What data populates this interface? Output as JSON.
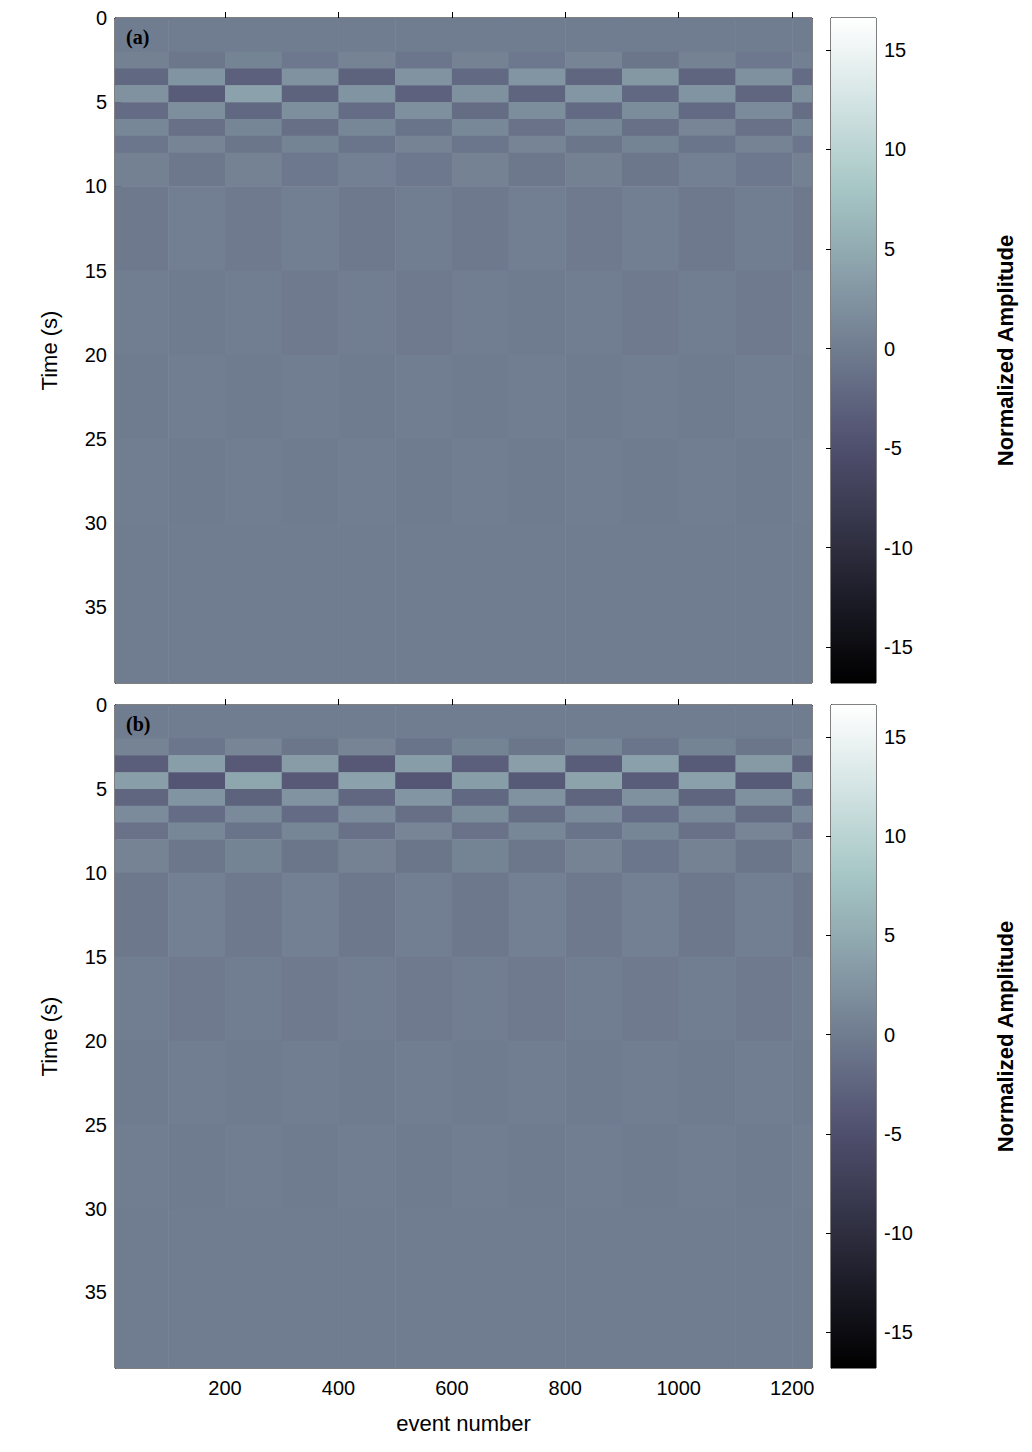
{
  "chart_data": [
    {
      "type": "heatmap",
      "label": "(a)",
      "ylabel": "Time (s)",
      "tick_labels": "y",
      "xlim": [
        6,
        1235
      ],
      "xticks": [
        200,
        400,
        600,
        800,
        1000,
        1200
      ],
      "ylim": [
        0,
        39.5
      ],
      "yticks": [
        0,
        5,
        10,
        15,
        20,
        25,
        30,
        35
      ],
      "x_edges": [
        0,
        100,
        200,
        300,
        400,
        500,
        600,
        700,
        800,
        900,
        1000,
        1100,
        1200,
        1300
      ],
      "y_edges": [
        0,
        2,
        3,
        4,
        5,
        6,
        7,
        8,
        10,
        15,
        20,
        25,
        30,
        40
      ],
      "cells": [
        [
          0,
          0,
          0,
          0,
          0,
          0,
          0,
          0,
          0,
          0,
          0,
          0,
          0
        ],
        [
          0.5,
          -0.6,
          0.8,
          -0.5,
          0.7,
          -0.8,
          0.6,
          -0.5,
          0.9,
          -0.7,
          0.6,
          -0.5,
          0.4
        ],
        [
          -2.2,
          2.6,
          -3.0,
          2.4,
          -2.8,
          2.5,
          -2.1,
          2.7,
          -2.4,
          3.0,
          -2.6,
          2.2,
          -1.8
        ],
        [
          2.4,
          -3.5,
          4.0,
          -2.8,
          2.6,
          -2.9,
          2.3,
          -2.5,
          2.8,
          -2.2,
          2.6,
          -2.4,
          2.0
        ],
        [
          -1.8,
          2.0,
          -2.2,
          1.9,
          -1.7,
          2.1,
          -1.6,
          1.8,
          -2.0,
          1.7,
          -1.9,
          1.6,
          -1.5
        ],
        [
          1.2,
          -1.3,
          1.1,
          -1.4,
          1.2,
          -1.0,
          1.3,
          -1.1,
          1.2,
          -1.3,
          1.0,
          -1.2,
          1.1
        ],
        [
          -0.8,
          0.9,
          -0.7,
          0.8,
          -0.9,
          0.7,
          -0.8,
          0.9,
          -0.7,
          0.8,
          -0.9,
          0.7,
          -0.8
        ],
        [
          0.5,
          -0.4,
          0.6,
          -0.5,
          0.4,
          -0.5,
          0.6,
          -0.4,
          0.5,
          -0.6,
          0.4,
          -0.5,
          0.5
        ],
        [
          -0.3,
          0.3,
          -0.2,
          0.3,
          -0.3,
          0.2,
          -0.3,
          0.3,
          -0.2,
          0.3,
          -0.3,
          0.2,
          -0.3
        ],
        [
          0.2,
          -0.1,
          0.2,
          -0.2,
          0.1,
          -0.2,
          0.2,
          -0.1,
          0.2,
          -0.2,
          0.1,
          -0.2,
          0.2
        ],
        [
          -0.1,
          0.1,
          -0.1,
          0.1,
          -0.1,
          0.1,
          -0.1,
          0.1,
          -0.1,
          0.1,
          -0.1,
          0.1,
          -0.1
        ],
        [
          0.1,
          -0.1,
          0.1,
          -0.1,
          0.1,
          -0.1,
          0.1,
          -0.1,
          0.1,
          -0.1,
          0.1,
          -0.1,
          0.1
        ],
        [
          0,
          0,
          0,
          0,
          0,
          0,
          0,
          0,
          0,
          0,
          0,
          0,
          0
        ]
      ],
      "colorbar": {
        "label": "Normalized Amplitude",
        "range": [
          -16.8,
          16.6
        ],
        "ticks": [
          -15,
          -10,
          -5,
          0,
          5,
          10,
          15
        ]
      }
    },
    {
      "type": "heatmap",
      "label": "(b)",
      "xlabel": "event number",
      "ylabel": "Time (s)",
      "xlim": [
        6,
        1235
      ],
      "xticks": [
        200,
        400,
        600,
        800,
        1000,
        1200
      ],
      "ylim": [
        0,
        39.5
      ],
      "yticks": [
        0,
        5,
        10,
        15,
        20,
        25,
        30,
        35
      ],
      "x_edges": [
        0,
        100,
        200,
        300,
        400,
        500,
        600,
        700,
        800,
        900,
        1000,
        1100,
        1200,
        1300
      ],
      "y_edges": [
        0,
        2,
        3,
        4,
        5,
        6,
        7,
        8,
        10,
        15,
        20,
        25,
        30,
        40
      ],
      "cells": [
        [
          0,
          0,
          0,
          0,
          0,
          0,
          0,
          0,
          0,
          0,
          0,
          0,
          0
        ],
        [
          0.7,
          -0.8,
          1.0,
          -0.7,
          0.9,
          -1.0,
          0.8,
          -0.7,
          1.1,
          -0.9,
          0.8,
          -0.7,
          0.6
        ],
        [
          -3.2,
          3.6,
          -3.8,
          3.4,
          -3.9,
          3.5,
          -3.1,
          3.7,
          -3.4,
          3.9,
          -3.6,
          3.2,
          -2.8
        ],
        [
          3.6,
          -4.2,
          4.5,
          -3.8,
          4.0,
          -4.1,
          3.5,
          -3.7,
          4.2,
          -3.4,
          3.9,
          -3.6,
          3.0
        ],
        [
          -2.4,
          2.6,
          -2.8,
          2.5,
          -2.3,
          2.7,
          -2.2,
          2.4,
          -2.6,
          2.3,
          -2.5,
          2.2,
          -2.0
        ],
        [
          1.6,
          -1.7,
          1.5,
          -1.8,
          1.6,
          -1.4,
          1.7,
          -1.5,
          1.6,
          -1.7,
          1.4,
          -1.6,
          1.5
        ],
        [
          -1.1,
          1.2,
          -1.0,
          1.1,
          -1.2,
          1.0,
          -1.1,
          1.2,
          -1.0,
          1.1,
          -1.2,
          1.0,
          -1.1
        ],
        [
          0.7,
          -0.6,
          0.8,
          -0.7,
          0.6,
          -0.7,
          0.8,
          -0.6,
          0.7,
          -0.8,
          0.6,
          -0.7,
          0.7
        ],
        [
          -0.4,
          0.4,
          -0.3,
          0.4,
          -0.4,
          0.3,
          -0.4,
          0.4,
          -0.3,
          0.4,
          -0.4,
          0.3,
          -0.4
        ],
        [
          0.2,
          -0.2,
          0.2,
          -0.2,
          0.2,
          -0.2,
          0.2,
          -0.2,
          0.2,
          -0.2,
          0.2,
          -0.2,
          0.2
        ],
        [
          -0.1,
          0.1,
          -0.1,
          0.1,
          -0.1,
          0.1,
          -0.1,
          0.1,
          -0.1,
          0.1,
          -0.1,
          0.1,
          -0.1
        ],
        [
          0.1,
          -0.1,
          0.1,
          -0.1,
          0.1,
          -0.1,
          0.1,
          -0.1,
          0.1,
          -0.1,
          0.1,
          -0.1,
          0.1
        ],
        [
          0,
          0,
          0,
          0,
          0,
          0,
          0,
          0,
          0,
          0,
          0,
          0,
          0
        ]
      ],
      "colorbar": {
        "label": "Normalized Amplitude",
        "range": [
          -16.8,
          16.6
        ],
        "ticks": [
          -15,
          -10,
          -5,
          0,
          5,
          10,
          15
        ]
      }
    }
  ]
}
